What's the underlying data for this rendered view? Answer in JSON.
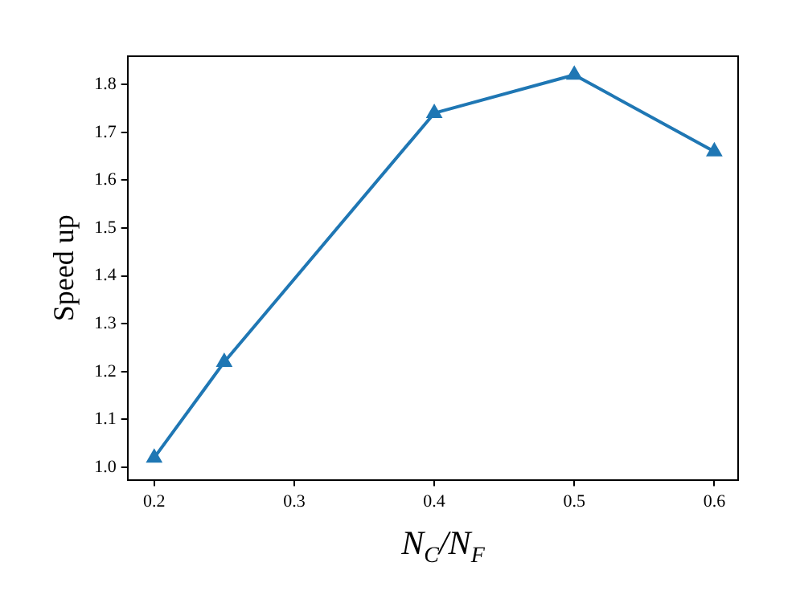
{
  "chart_data": {
    "type": "line",
    "xlabel": "N$_{C}$/N$_{F}$",
    "ylabel": "Speed up",
    "x": [
      0.2,
      0.25,
      0.4,
      0.5,
      0.6
    ],
    "series": [
      {
        "color": "#1f77b4",
        "values": [
          1.02,
          1.22,
          1.74,
          1.82,
          1.66
        ]
      }
    ],
    "xlim": [
      0.181,
      0.617
    ],
    "xticks": [
      0.2,
      0.3,
      0.4,
      0.5,
      0.6
    ],
    "ylim": [
      0.974,
      1.859
    ],
    "yticks": [
      {
        "value": 1,
        "label": "1.0"
      },
      1.1,
      1.2,
      1.3,
      1.4,
      1.5,
      1.6,
      1.7,
      1.8
    ],
    "grid": false,
    "legend": false,
    "marker": "triangle",
    "line_style": "solid"
  }
}
